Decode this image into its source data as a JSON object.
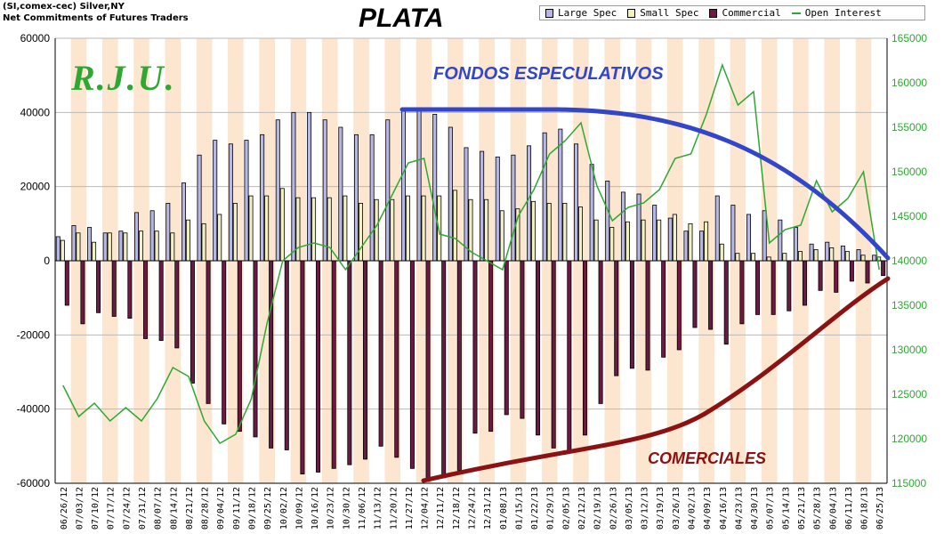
{
  "header": {
    "line1": "(SI,comex-cec) Silver,NY",
    "line2": "Net Commitments of Futures Traders"
  },
  "title": "PLATA",
  "watermark": "R.J.U.",
  "annotations": {
    "fondos": "FONDOS ESPECULATIVOS",
    "comerciales": "COMERCIALES"
  },
  "colors": {
    "large_spec": "#b7b7e4",
    "small_spec": "#f2efc2",
    "commercial": "#6b1a42",
    "open_interest": "#2ea832",
    "stripe": "#fde6cf",
    "fondos_curve": "#3346c8",
    "comerciales_curve": "#8a1212"
  },
  "chart_data": {
    "type": "bar",
    "dates": [
      "06/26/12",
      "07/03/12",
      "07/10/12",
      "07/17/12",
      "07/24/12",
      "07/31/12",
      "08/07/12",
      "08/14/12",
      "08/21/12",
      "08/28/12",
      "09/04/12",
      "09/11/12",
      "09/18/12",
      "09/25/12",
      "10/02/12",
      "10/09/12",
      "10/16/12",
      "10/23/12",
      "10/30/12",
      "11/06/12",
      "11/13/12",
      "11/20/12",
      "11/27/12",
      "12/04/12",
      "12/11/12",
      "12/18/12",
      "12/24/12",
      "12/31/12",
      "01/08/13",
      "01/15/13",
      "01/22/13",
      "01/29/13",
      "02/05/13",
      "02/12/13",
      "02/19/13",
      "02/26/13",
      "03/05/13",
      "03/12/13",
      "03/19/13",
      "03/26/13",
      "04/02/13",
      "04/09/13",
      "04/16/13",
      "04/23/13",
      "04/30/13",
      "05/07/13",
      "05/14/13",
      "05/21/13",
      "05/28/13",
      "06/04/13",
      "06/11/13",
      "06/18/13",
      "06/25/13"
    ],
    "series": [
      {
        "name": "Large Spec",
        "values": [
          6500,
          9500,
          9000,
          7500,
          8000,
          13000,
          13500,
          15500,
          21000,
          28500,
          32500,
          31500,
          32500,
          34000,
          38000,
          40000,
          40000,
          38000,
          36000,
          34000,
          34000,
          38000,
          41000,
          41000,
          39500,
          36000,
          30500,
          29500,
          28000,
          28500,
          31000,
          34500,
          35500,
          31500,
          26000,
          21500,
          18500,
          18000,
          15000,
          11500,
          8000,
          8000,
          17500,
          15000,
          12500,
          13500,
          11000,
          9000,
          4500,
          5000,
          4000,
          3000,
          1500
        ]
      },
      {
        "name": "Small Spec",
        "values": [
          5500,
          7500,
          5000,
          7500,
          7500,
          8000,
          8000,
          7500,
          11000,
          10000,
          12500,
          15500,
          17500,
          17500,
          19500,
          17000,
          17000,
          17000,
          17500,
          15500,
          16500,
          16500,
          17500,
          17500,
          17500,
          19000,
          16500,
          16500,
          13500,
          14000,
          16000,
          15500,
          15500,
          14500,
          11000,
          9000,
          10500,
          11000,
          11000,
          12500,
          10000,
          10500,
          4500,
          2000,
          2000,
          1000,
          2000,
          2500,
          3000,
          3500,
          2500,
          1500,
          1000
        ]
      },
      {
        "name": "Commercial",
        "values": [
          -12000,
          -17000,
          -14000,
          -15000,
          -15500,
          -21000,
          -21500,
          -23500,
          -33000,
          -38500,
          -44000,
          -46000,
          -47500,
          -50500,
          -51000,
          -57500,
          -57000,
          -56000,
          -55000,
          -53500,
          -50000,
          -53000,
          -56000,
          -59500,
          -58500,
          -56500,
          -46500,
          -46000,
          -41500,
          -42500,
          -47000,
          -50500,
          -51500,
          -47000,
          -38500,
          -31000,
          -29000,
          -29500,
          -26000,
          -24000,
          -18000,
          -18500,
          -22500,
          -17000,
          -14500,
          -14500,
          -13500,
          -12000,
          -8000,
          -8500,
          -5500,
          -6000,
          -4000
        ]
      },
      {
        "name": "Open Interest",
        "values": [
          126000,
          122500,
          124000,
          122000,
          123500,
          122000,
          124500,
          128000,
          127000,
          122000,
          119500,
          120500,
          124500,
          133000,
          140000,
          141500,
          142000,
          141500,
          139000,
          141500,
          144000,
          147500,
          151000,
          151500,
          143000,
          142500,
          141000,
          140000,
          139000,
          145000,
          148000,
          152000,
          153500,
          155500,
          148500,
          144500,
          146000,
          146500,
          148000,
          151500,
          152000,
          156500,
          162000,
          157500,
          159000,
          142000,
          143500,
          144000,
          149000,
          145500,
          147000,
          150000,
          139000
        ]
      }
    ],
    "y_left_ticks": [
      "60000",
      "40000",
      "20000",
      "0",
      "-20000",
      "-40000",
      "-60000"
    ],
    "y_left_range": [
      -60000,
      60000
    ],
    "y_right_ticks": [
      "165000",
      "160000",
      "155000",
      "150000",
      "145000",
      "140000",
      "135000",
      "130000",
      "125000",
      "120000",
      "115000"
    ],
    "y_right_range": [
      115000,
      165000
    ],
    "legend": [
      "Large Spec",
      "Small Spec",
      "Commercial",
      "Open Interest"
    ],
    "legend_position": "top-right",
    "grid": "alternating vertical stripes"
  }
}
